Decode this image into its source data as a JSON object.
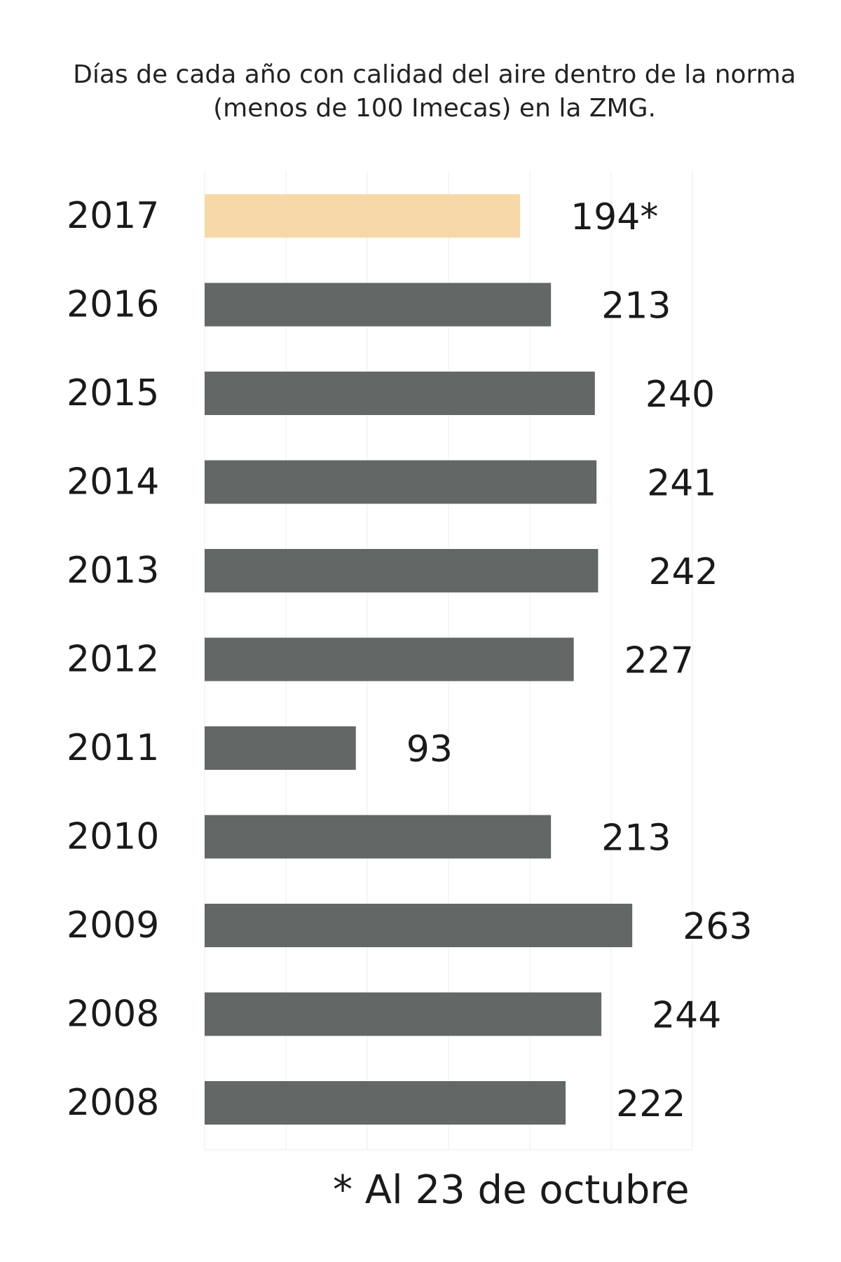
{
  "chart_data": {
    "type": "bar",
    "orientation": "horizontal",
    "title": "Días de cada año con calidad del aire dentro de la norma (menos de 100 Imecas) en la ZMG.",
    "title_lines": [
      "Días de cada año con calidad del aire dentro de la norma",
      "(menos de 100 Imecas) en la ZMG."
    ],
    "categories": [
      "2017",
      "2016",
      "2015",
      "2014",
      "2013",
      "2012",
      "2011",
      "2010",
      "2009",
      "2008",
      "2008"
    ],
    "values": [
      194,
      213,
      240,
      241,
      242,
      227,
      93,
      213,
      263,
      244,
      222
    ],
    "value_labels": [
      "194*",
      "213",
      "240",
      "241",
      "242",
      "227",
      "93",
      "213",
      "263",
      "244",
      "222"
    ],
    "highlight_index": 0,
    "xlim": [
      0,
      300
    ],
    "grid": true,
    "colors": {
      "bar": "#636766",
      "highlight": "#f7d9a9",
      "grid": "#ececec"
    },
    "footnote": "* Al 23 de octubre"
  }
}
